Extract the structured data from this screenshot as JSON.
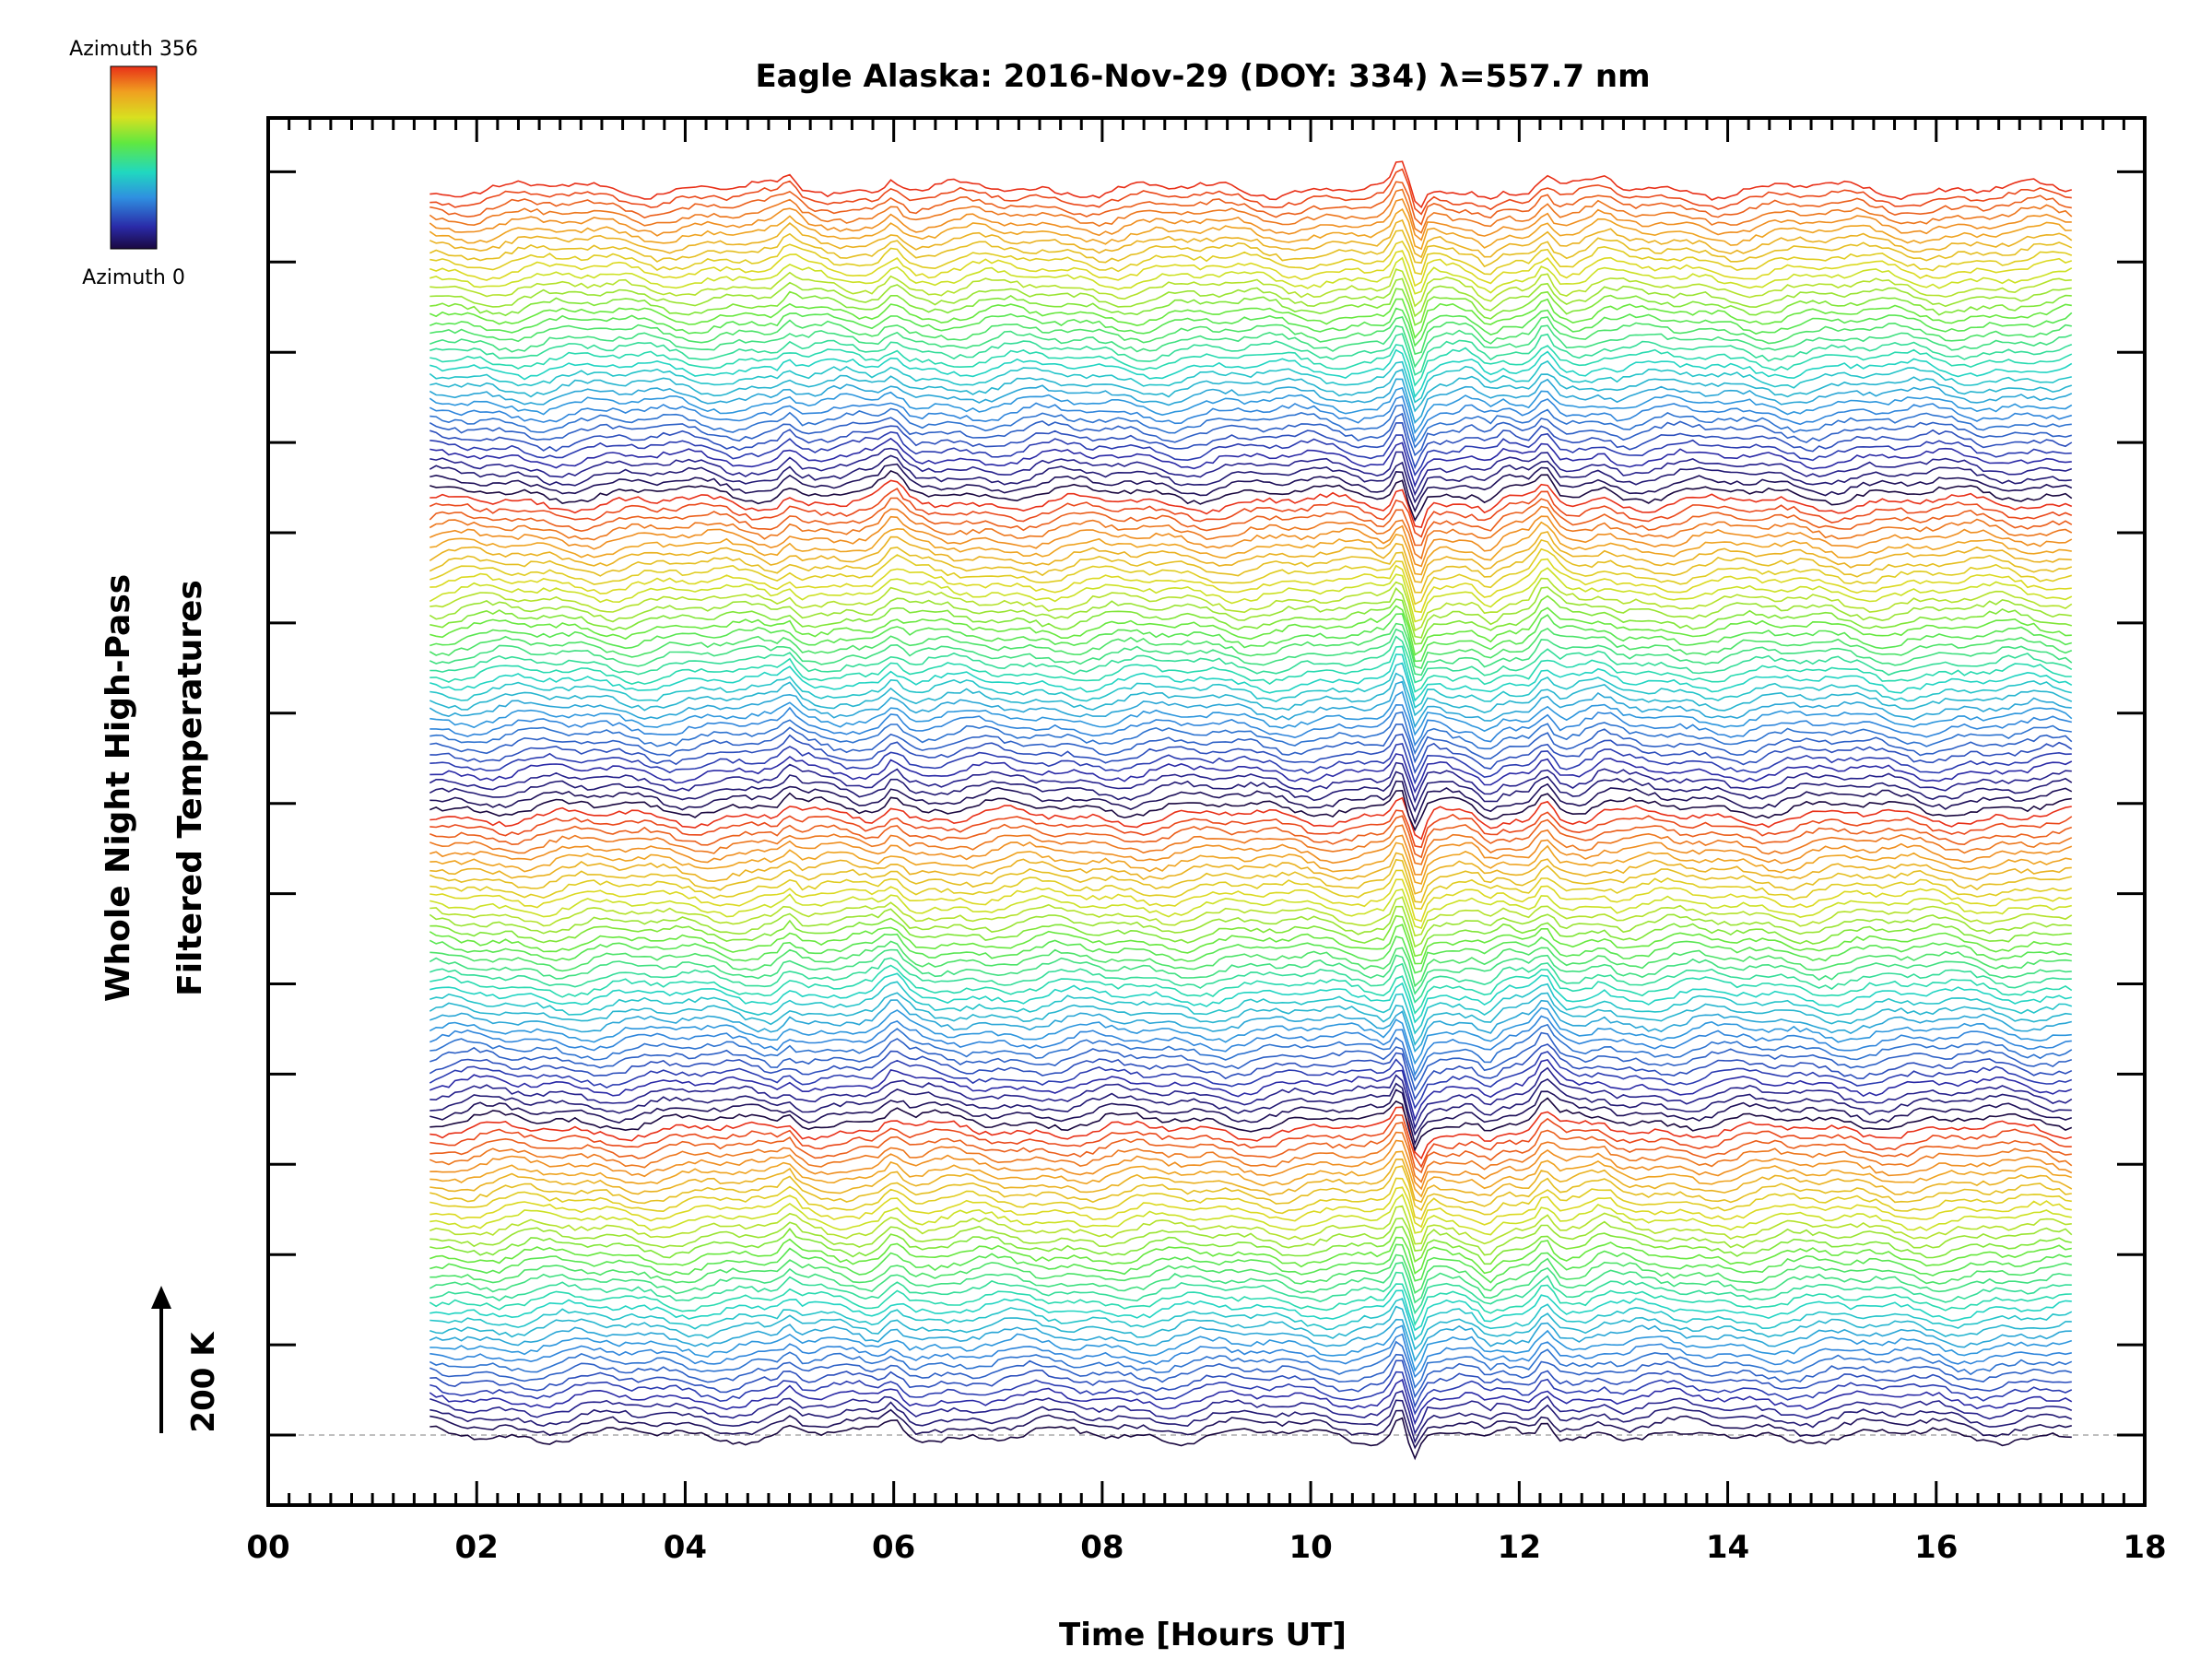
{
  "chart_data": {
    "type": "line",
    "title": "Eagle Alaska: 2016-Nov-29 (DOY: 334) λ=557.7 nm",
    "xlabel": "Time [Hours UT]",
    "ylabel_lines": [
      "Whole Night High-Pass",
      "Filtered Temperatures"
    ],
    "xlim": [
      0,
      18
    ],
    "x_tick_labels": [
      "00",
      "02",
      "04",
      "06",
      "08",
      "10",
      "12",
      "14",
      "16",
      "18"
    ],
    "x_data_range": [
      1.55,
      17.3
    ],
    "series_count": 140,
    "series_spacing_note_label": "200 K",
    "colorbar": {
      "top_label": "Azimuth 356",
      "bottom_label": "Azimuth 0",
      "colormap": "rainbow",
      "min_azimuth": 0,
      "max_azimuth": 356
    },
    "series_color_cycle_length": 35,
    "features": {
      "main_disturbance_hours": [
        10.85,
        11.1
      ],
      "secondary_peak_hours": [
        12.25
      ],
      "early_peak_hours": [
        6.0
      ]
    },
    "grid": false,
    "legend": "colorbar top-left"
  }
}
